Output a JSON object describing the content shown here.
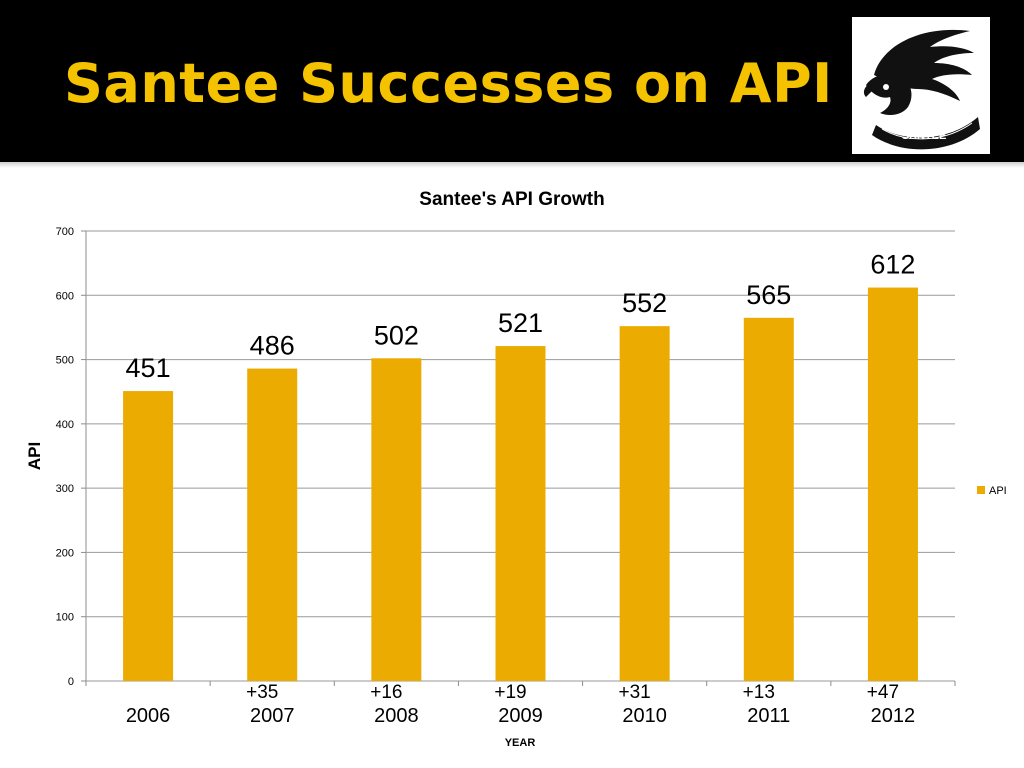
{
  "slide": {
    "title": "Santee Successes on API",
    "logo_text": "SANTEE",
    "colors": {
      "header_bg": "#000000",
      "title": "#f5c200",
      "bar": "#ecab00"
    }
  },
  "chart_data": {
    "type": "bar",
    "title": "Santee's API Growth",
    "xlabel": "YEAR",
    "ylabel": "API",
    "categories": [
      "2006",
      "2007",
      "2008",
      "2009",
      "2010",
      "2011",
      "2012"
    ],
    "series": [
      {
        "name": "API",
        "values": [
          451,
          486,
          502,
          521,
          552,
          565,
          612
        ]
      }
    ],
    "data_labels": [
      "451",
      "486",
      "502",
      "521",
      "552",
      "565",
      "612"
    ],
    "change_labels": [
      "",
      "+35",
      "+16",
      "+19",
      "+31",
      "+13",
      "+47"
    ],
    "yticks": [
      "0",
      "100",
      "200",
      "300",
      "400",
      "500",
      "600",
      "700"
    ],
    "ylim": [
      0,
      700
    ],
    "grid": true,
    "legend": "right",
    "bar_color": "#ecab00"
  }
}
